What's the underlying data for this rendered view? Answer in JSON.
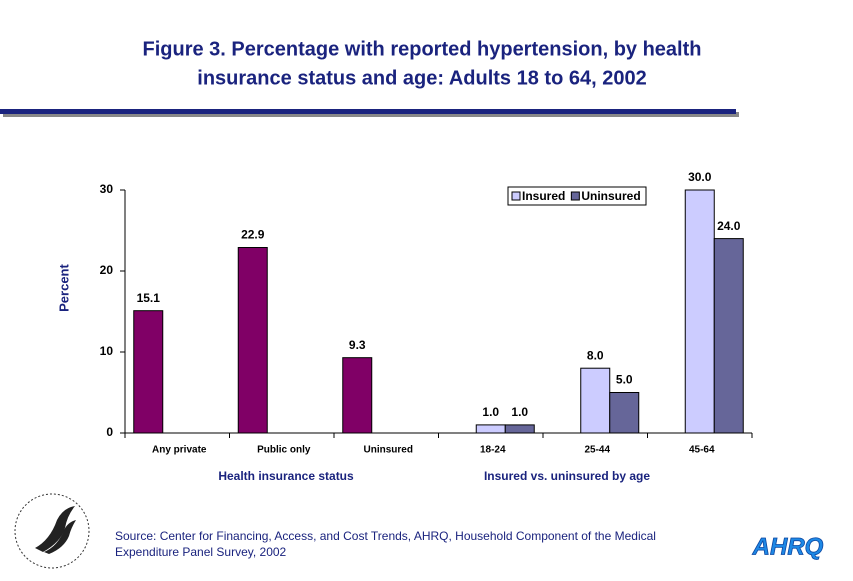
{
  "chart_data": {
    "type": "bar",
    "title": [
      "Figure 3. Percentage with reported hypertension, by health",
      "insurance status and age: Adults 18 to 64, 2002"
    ],
    "ylabel": "Percent",
    "categories": [
      "Any private",
      "Public only",
      "Uninsured",
      "18-24",
      "25-44",
      "45-64"
    ],
    "group_labels": [
      "Health insurance status",
      "Insured vs. uninsured by age"
    ],
    "series": [
      {
        "color": "#800066",
        "values": [
          15.1,
          22.9,
          9.3,
          null,
          null,
          null
        ],
        "value_labels": [
          "15.1",
          "22.9",
          "9.3",
          null,
          null,
          null
        ]
      },
      {
        "name": "Insured",
        "color": "#ccccff",
        "values": [
          null,
          null,
          null,
          1.0,
          8.0,
          30.0
        ],
        "value_labels": [
          null,
          null,
          null,
          "1.0",
          "8.0",
          "30.0"
        ]
      },
      {
        "name": "Uninsured",
        "color": "#666699",
        "values": [
          null,
          null,
          null,
          1.0,
          5.0,
          24.0
        ],
        "value_labels": [
          null,
          null,
          null,
          "1.0",
          "5.0",
          "24.0"
        ]
      }
    ],
    "ylim": [
      0,
      30
    ],
    "yticks": [
      0,
      10,
      20,
      30
    ]
  },
  "source": [
    "Source: Center for Financing, Access, and Cost Trends, AHRQ, Household Component of the Medical",
    "Expenditure Panel Survey, 2002"
  ],
  "logo": "AHRQ"
}
